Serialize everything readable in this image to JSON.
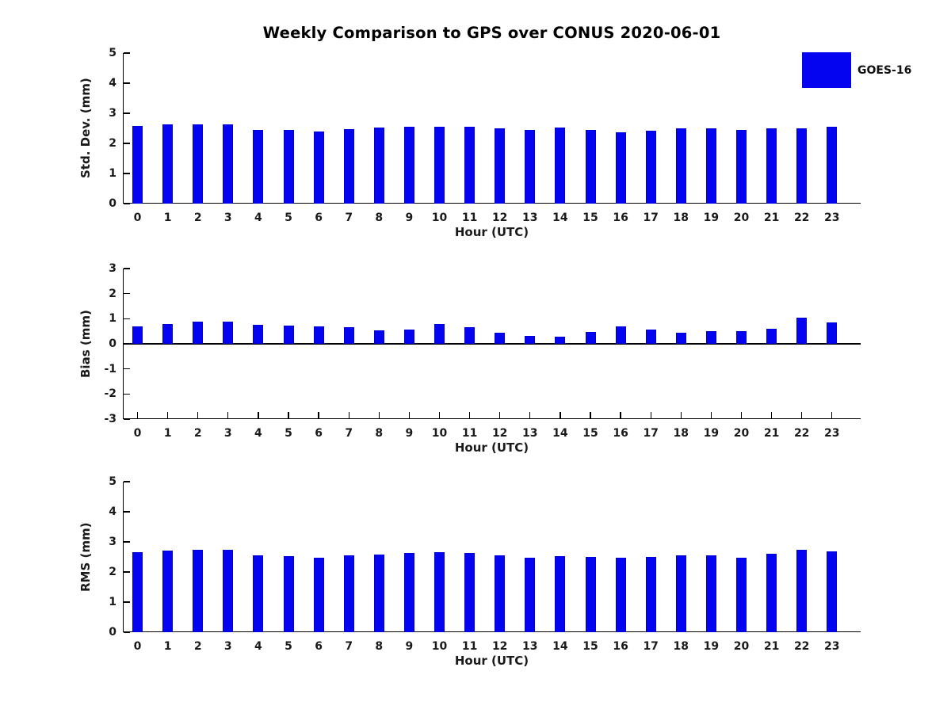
{
  "title": "Weekly Comparison to GPS over CONUS 2020-06-01",
  "legend": {
    "label": "GOES-16",
    "position": "top-right"
  },
  "colors": {
    "bar": "#0404f0",
    "axis": "#000000",
    "tick_text": "#1a1a1a",
    "title_text": "#000000"
  },
  "chart_data": [
    {
      "type": "bar",
      "name": "std-dev",
      "ylabel": "Std. Dev. (mm)",
      "xlabel": "Hour (UTC)",
      "ylim": [
        0,
        5
      ],
      "yticks": [
        0,
        1,
        2,
        3,
        4,
        5
      ],
      "grid": false,
      "categories": [
        "0",
        "1",
        "2",
        "3",
        "4",
        "5",
        "6",
        "7",
        "8",
        "9",
        "10",
        "11",
        "12",
        "13",
        "14",
        "15",
        "16",
        "17",
        "18",
        "19",
        "20",
        "21",
        "22",
        "23"
      ],
      "series": [
        {
          "name": "GOES-16",
          "values": [
            2.58,
            2.62,
            2.62,
            2.62,
            2.44,
            2.44,
            2.4,
            2.47,
            2.53,
            2.56,
            2.56,
            2.56,
            2.49,
            2.46,
            2.52,
            2.46,
            2.37,
            2.43,
            2.5,
            2.5,
            2.44,
            2.51,
            2.51,
            2.56
          ]
        }
      ]
    },
    {
      "type": "bar",
      "name": "bias",
      "ylabel": "Bias (mm)",
      "xlabel": "Hour (UTC)",
      "ylim": [
        -3,
        3
      ],
      "yticks": [
        -3,
        -2,
        -1,
        0,
        1,
        2,
        3
      ],
      "grid": false,
      "categories": [
        "0",
        "1",
        "2",
        "3",
        "4",
        "5",
        "6",
        "7",
        "8",
        "9",
        "10",
        "11",
        "12",
        "13",
        "14",
        "15",
        "16",
        "17",
        "18",
        "19",
        "20",
        "21",
        "22",
        "23"
      ],
      "series": [
        {
          "name": "GOES-16",
          "values": [
            0.68,
            0.8,
            0.9,
            0.87,
            0.77,
            0.72,
            0.68,
            0.65,
            0.55,
            0.58,
            0.78,
            0.65,
            0.44,
            0.32,
            0.28,
            0.47,
            0.68,
            0.57,
            0.45,
            0.51,
            0.5,
            0.6,
            1.05,
            0.85
          ]
        }
      ]
    },
    {
      "type": "bar",
      "name": "rms",
      "ylabel": "RMS (mm)",
      "xlabel": "Hour (UTC)",
      "ylim": [
        0,
        5
      ],
      "yticks": [
        0,
        1,
        2,
        3,
        4,
        5
      ],
      "grid": false,
      "categories": [
        "0",
        "1",
        "2",
        "3",
        "4",
        "5",
        "6",
        "7",
        "8",
        "9",
        "10",
        "11",
        "12",
        "13",
        "14",
        "15",
        "16",
        "17",
        "18",
        "19",
        "20",
        "21",
        "22",
        "23"
      ],
      "series": [
        {
          "name": "GOES-16",
          "values": [
            2.66,
            2.71,
            2.75,
            2.75,
            2.55,
            2.52,
            2.48,
            2.55,
            2.58,
            2.62,
            2.66,
            2.63,
            2.56,
            2.47,
            2.53,
            2.5,
            2.47,
            2.51,
            2.54,
            2.54,
            2.47,
            2.61,
            2.74,
            2.69
          ]
        }
      ]
    }
  ]
}
